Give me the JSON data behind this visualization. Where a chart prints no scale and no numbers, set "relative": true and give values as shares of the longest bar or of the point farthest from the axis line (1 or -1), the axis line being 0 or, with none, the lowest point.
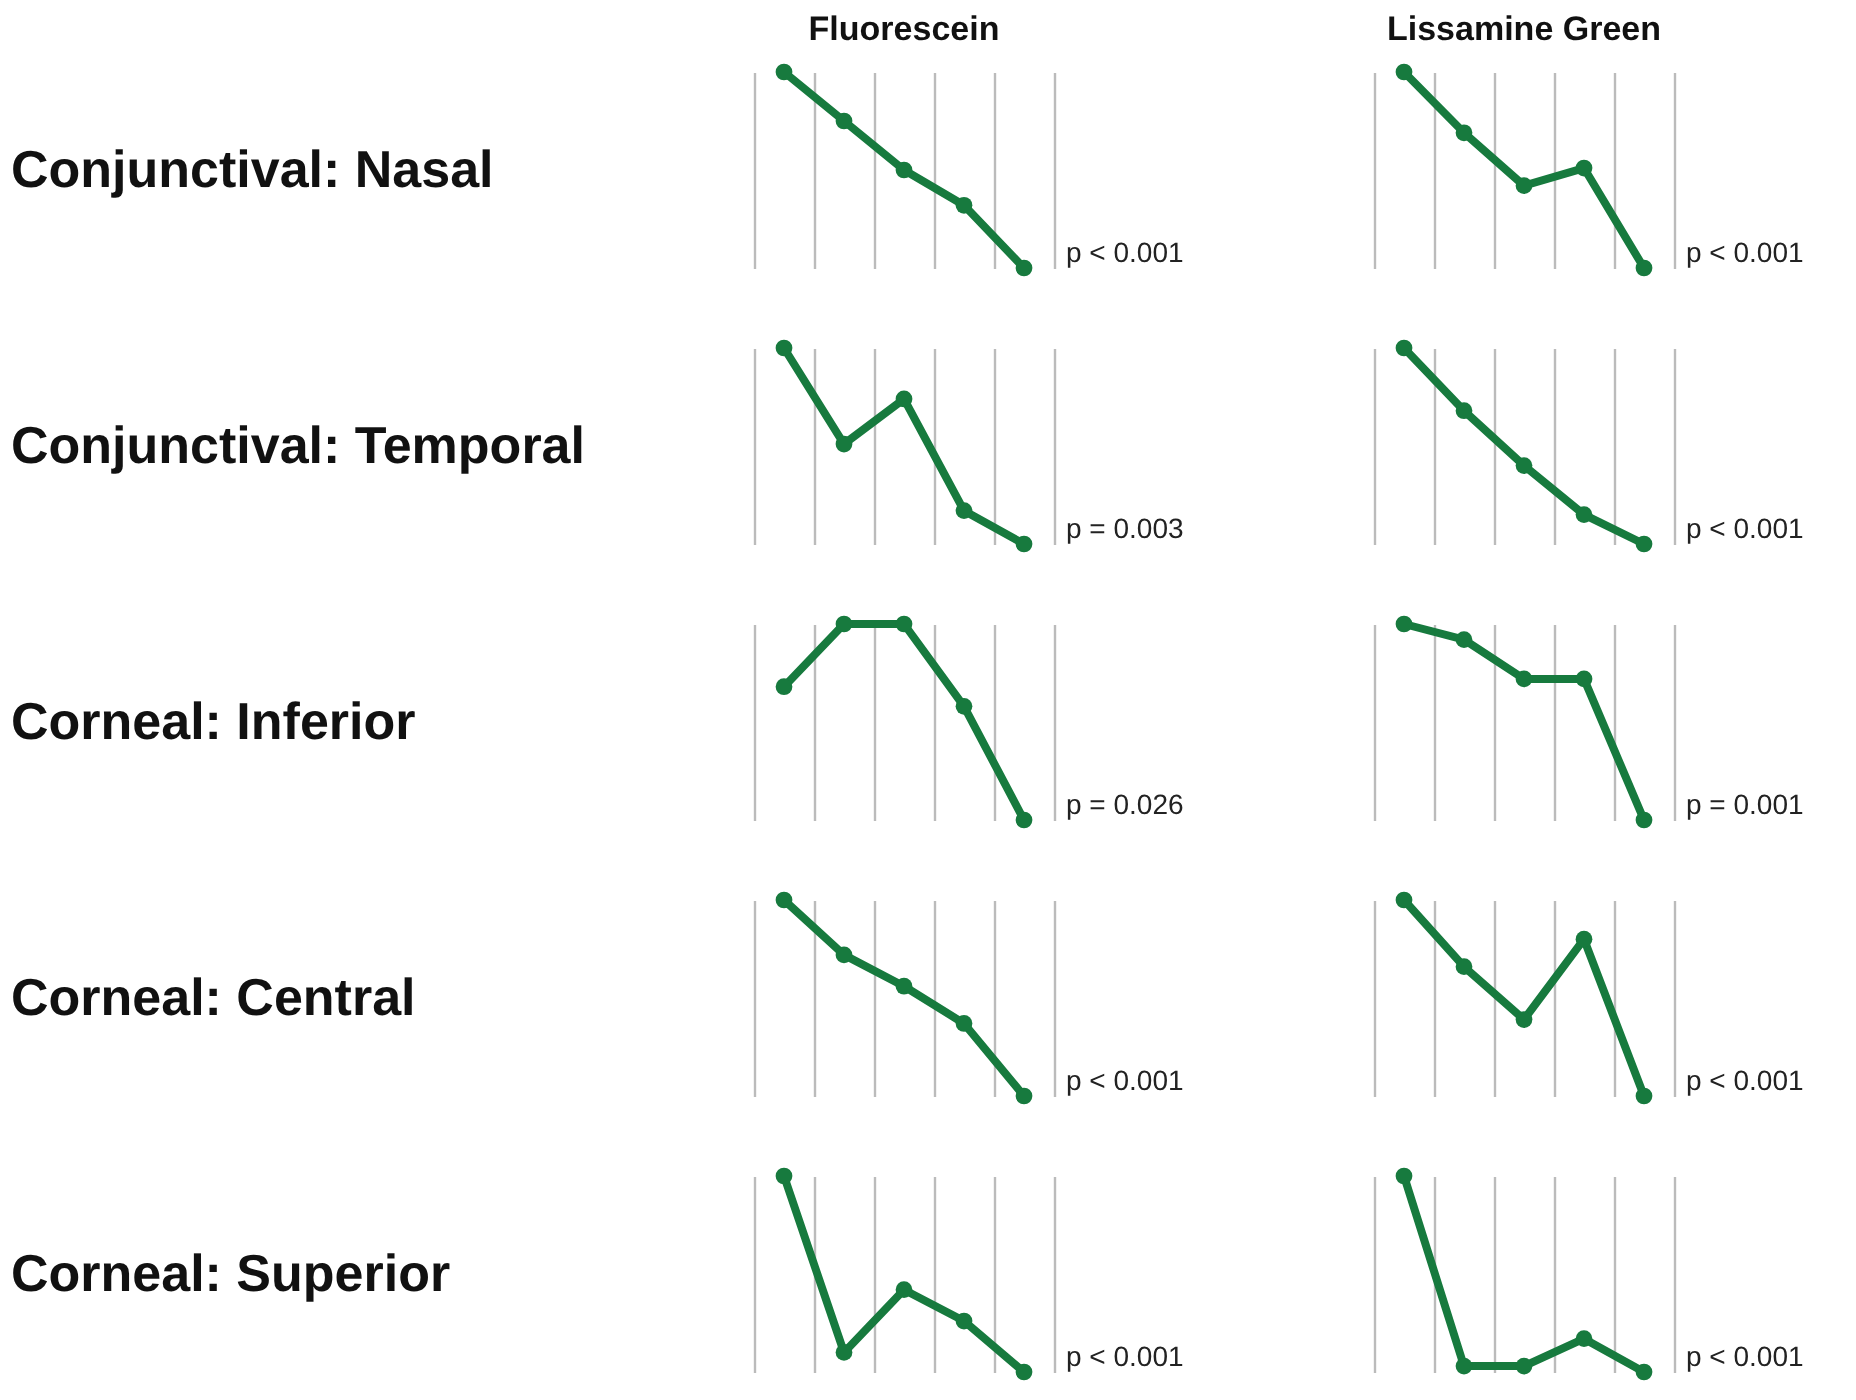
{
  "chart_data": [
    {
      "type": "line",
      "relative": true,
      "title": "Fluorescein",
      "ylabel": "Conjunctival: Nasal",
      "categories": [
        null,
        null,
        null,
        null,
        null
      ],
      "series": [
        {
          "color": "#177a3e",
          "values": [
            1,
            0.75,
            0.5,
            0.32,
            0
          ]
        }
      ],
      "marker": "circle",
      "grid": "x",
      "tick_labels": false,
      "annotations": [
        "p < 0.001"
      ]
    },
    {
      "type": "line",
      "relative": true,
      "title": "Lissamine Green",
      "categories": [
        null,
        null,
        null,
        null,
        null
      ],
      "series": [
        {
          "color": "#177a3e",
          "values": [
            1,
            0.69,
            0.42,
            0.51,
            0
          ]
        }
      ],
      "marker": "circle",
      "grid": "x",
      "tick_labels": false,
      "annotations": [
        "p < 0.001"
      ]
    },
    {
      "type": "line",
      "relative": true,
      "ylabel": "Conjunctival: Temporal",
      "categories": [
        null,
        null,
        null,
        null,
        null
      ],
      "series": [
        {
          "color": "#177a3e",
          "values": [
            1,
            0.51,
            0.74,
            0.17,
            0
          ]
        }
      ],
      "marker": "circle",
      "grid": "x",
      "tick_labels": false,
      "annotations": [
        "p = 0.003"
      ]
    },
    {
      "type": "line",
      "relative": true,
      "categories": [
        null,
        null,
        null,
        null,
        null
      ],
      "series": [
        {
          "color": "#177a3e",
          "values": [
            1,
            0.68,
            0.4,
            0.15,
            0
          ]
        }
      ],
      "marker": "circle",
      "grid": "x",
      "tick_labels": false,
      "annotations": [
        "p < 0.001"
      ]
    },
    {
      "type": "line",
      "relative": true,
      "ylabel": "Corneal: Inferior",
      "categories": [
        null,
        null,
        null,
        null,
        null
      ],
      "series": [
        {
          "color": "#177a3e",
          "values": [
            0.68,
            1,
            1,
            0.58,
            0
          ]
        }
      ],
      "marker": "circle",
      "grid": "x",
      "tick_labels": false,
      "annotations": [
        "p = 0.026"
      ]
    },
    {
      "type": "line",
      "relative": true,
      "categories": [
        null,
        null,
        null,
        null,
        null
      ],
      "series": [
        {
          "color": "#177a3e",
          "values": [
            1,
            0.92,
            0.72,
            0.72,
            0
          ]
        }
      ],
      "marker": "circle",
      "grid": "x",
      "tick_labels": false,
      "annotations": [
        "p = 0.001"
      ]
    },
    {
      "type": "line",
      "relative": true,
      "ylabel": "Corneal: Central",
      "categories": [
        null,
        null,
        null,
        null,
        null
      ],
      "series": [
        {
          "color": "#177a3e",
          "values": [
            1,
            0.72,
            0.56,
            0.37,
            0
          ]
        }
      ],
      "marker": "circle",
      "grid": "x",
      "tick_labels": false,
      "annotations": [
        "p < 0.001"
      ]
    },
    {
      "type": "line",
      "relative": true,
      "categories": [
        null,
        null,
        null,
        null,
        null
      ],
      "series": [
        {
          "color": "#177a3e",
          "values": [
            1,
            0.66,
            0.39,
            0.8,
            0
          ]
        }
      ],
      "marker": "circle",
      "grid": "x",
      "tick_labels": false,
      "annotations": [
        "p < 0.001"
      ]
    },
    {
      "type": "line",
      "relative": true,
      "ylabel": "Corneal: Superior",
      "categories": [
        null,
        null,
        null,
        null,
        null
      ],
      "series": [
        {
          "color": "#177a3e",
          "values": [
            1,
            0.1,
            0.42,
            0.26,
            0
          ]
        }
      ],
      "marker": "circle",
      "grid": "x",
      "tick_labels": false,
      "annotations": [
        "p < 0.001"
      ]
    },
    {
      "type": "line",
      "relative": true,
      "categories": [
        null,
        null,
        null,
        null,
        null
      ],
      "series": [
        {
          "color": "#177a3e",
          "values": [
            1,
            0.03,
            0.03,
            0.17,
            0
          ]
        }
      ],
      "marker": "circle",
      "grid": "x",
      "tick_labels": false,
      "annotations": [
        "p < 0.001"
      ]
    }
  ]
}
